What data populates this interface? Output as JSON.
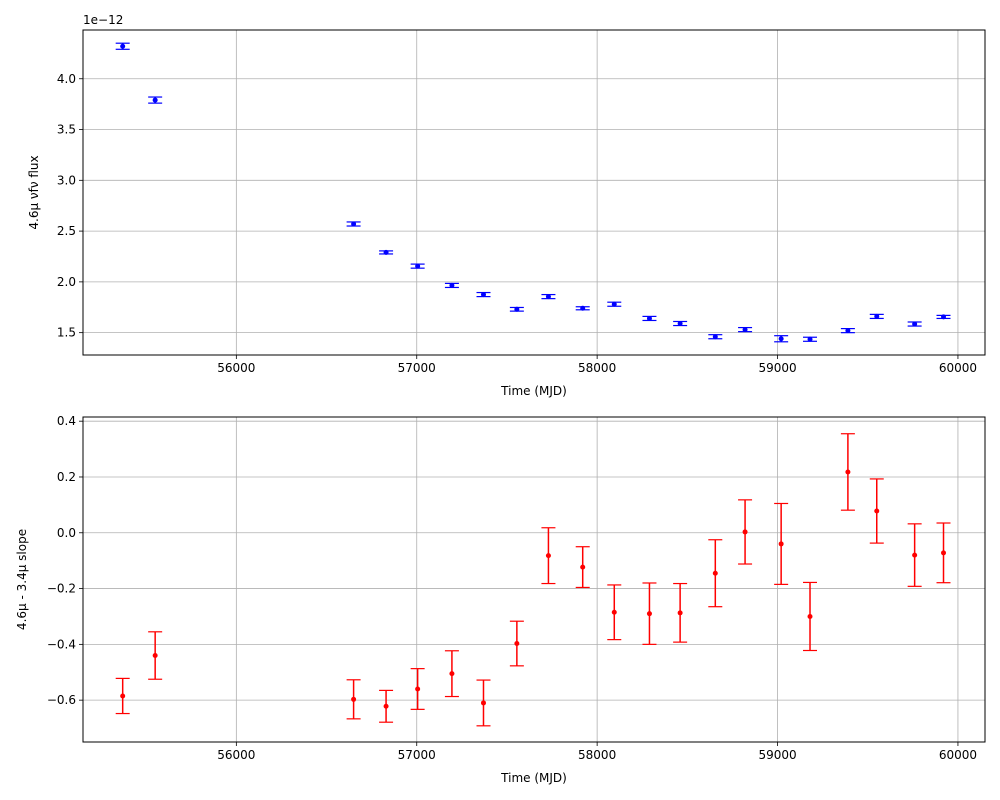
{
  "chart_data": [
    {
      "type": "scatter",
      "marker": "errorbar-dot",
      "color": "#0000ff",
      "xlabel": "Time (MJD)",
      "ylabel": "4.6$\\mu$ $\\nu f\\nu$ flux",
      "ylabel_display": "4.6μ νfν flux",
      "offset_text": "1e−12",
      "y_multiplier": 1e-12,
      "xlim": [
        55150,
        60150
      ],
      "ylim": [
        1.28,
        4.48
      ],
      "x_ticks": [
        56000,
        57000,
        58000,
        59000,
        60000
      ],
      "y_ticks": [
        1.5,
        2.0,
        2.5,
        3.0,
        3.5,
        4.0
      ],
      "x_tick_labels": [
        "56000",
        "57000",
        "58000",
        "59000",
        "60000"
      ],
      "y_tick_labels": [
        "1.5",
        "2.0",
        "2.5",
        "3.0",
        "3.5",
        "4.0"
      ],
      "grid": true,
      "x": [
        55370,
        55550,
        56650,
        56830,
        57005,
        57195,
        57370,
        57555,
        57730,
        57920,
        58095,
        58290,
        58460,
        58655,
        58820,
        59020,
        59180,
        59390,
        59550,
        59760,
        59920
      ],
      "y": [
        4.32,
        3.79,
        2.57,
        2.29,
        2.155,
        1.965,
        1.875,
        1.73,
        1.855,
        1.74,
        1.78,
        1.64,
        1.59,
        1.46,
        1.53,
        1.44,
        1.435,
        1.52,
        1.66,
        1.585,
        1.655
      ],
      "yerr": [
        0.03,
        0.03,
        0.02,
        0.015,
        0.02,
        0.02,
        0.02,
        0.018,
        0.02,
        0.015,
        0.02,
        0.02,
        0.02,
        0.02,
        0.02,
        0.03,
        0.02,
        0.02,
        0.02,
        0.02,
        0.015
      ]
    },
    {
      "type": "scatter",
      "marker": "errorbar-dot",
      "color": "#ff0000",
      "xlabel": "Time (MJD)",
      "ylabel": "4.6$\\mu$ - 3.4$\\mu$ slope",
      "ylabel_display": "4.6μ - 3.4μ slope",
      "xlim": [
        55150,
        60150
      ],
      "ylim": [
        -0.75,
        0.415
      ],
      "x_ticks": [
        56000,
        57000,
        58000,
        59000,
        60000
      ],
      "y_ticks": [
        -0.6,
        -0.4,
        -0.2,
        0.0,
        0.2,
        0.4
      ],
      "x_tick_labels": [
        "56000",
        "57000",
        "58000",
        "59000",
        "60000"
      ],
      "y_tick_labels": [
        "−0.6",
        "−0.4",
        "−0.2",
        "0.0",
        "0.2",
        "0.4"
      ],
      "grid": true,
      "x": [
        55370,
        55550,
        56650,
        56830,
        57005,
        57195,
        57370,
        57555,
        57730,
        57920,
        58095,
        58290,
        58460,
        58655,
        58820,
        59020,
        59180,
        59390,
        59550,
        59760,
        59920
      ],
      "y": [
        -0.585,
        -0.44,
        -0.597,
        -0.622,
        -0.56,
        -0.505,
        -0.61,
        -0.397,
        -0.082,
        -0.123,
        -0.285,
        -0.29,
        -0.287,
        -0.145,
        0.003,
        -0.04,
        -0.3,
        0.218,
        0.078,
        -0.08,
        -0.072
      ],
      "yerr": [
        0.063,
        0.085,
        0.07,
        0.057,
        0.073,
        0.082,
        0.082,
        0.08,
        0.1,
        0.073,
        0.098,
        0.11,
        0.105,
        0.12,
        0.115,
        0.145,
        0.122,
        0.137,
        0.115,
        0.112,
        0.107
      ]
    }
  ]
}
